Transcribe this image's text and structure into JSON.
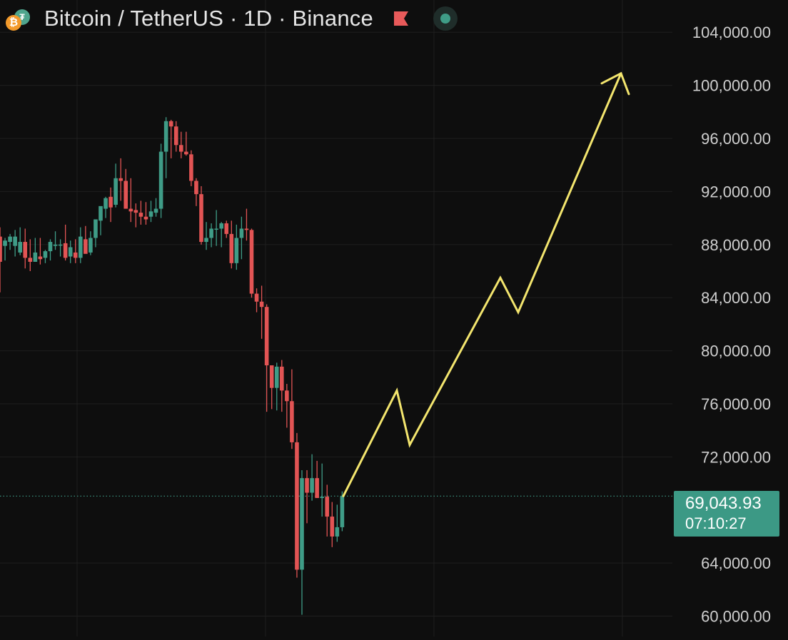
{
  "header": {
    "title": "Bitcoin / TetherUS · 1D · Binance",
    "btc_glyph": "₿",
    "tether_glyph": "₮",
    "accent_colors": {
      "up": "#3f9c87",
      "down": "#e25454",
      "projection": "#f3e56e",
      "flag": "#e85a5a"
    }
  },
  "price_label": {
    "price": "69,043.93",
    "countdown": "07:10:27"
  },
  "chart_data": {
    "type": "candlestick",
    "title": "Bitcoin / TetherUS · 1D · Binance",
    "ylim": [
      58900,
      106000
    ],
    "y_ticks": [
      {
        "value": 104000,
        "label": "104,000.00"
      },
      {
        "value": 100000,
        "label": "100,000.00"
      },
      {
        "value": 96000,
        "label": "96,000.00"
      },
      {
        "value": 92000,
        "label": "92,000.00"
      },
      {
        "value": 88000,
        "label": "88,000.00"
      },
      {
        "value": 84000,
        "label": "84,000.00"
      },
      {
        "value": 80000,
        "label": "80,000.00"
      },
      {
        "value": 76000,
        "label": "76,000.00"
      },
      {
        "value": 72000,
        "label": "72,000.00"
      },
      {
        "value": 64000,
        "label": "64,000.00"
      },
      {
        "value": 60000,
        "label": "60,000.00"
      }
    ],
    "grid": true,
    "current_price": 69043.93,
    "candles": [
      [
        0,
        88600,
        89300,
        84400,
        86700
      ],
      [
        1,
        87900,
        88500,
        86800,
        88300
      ],
      [
        2,
        88200,
        88800,
        87600,
        88600
      ],
      [
        3,
        87900,
        89100,
        87100,
        88600
      ],
      [
        4,
        87400,
        89300,
        87200,
        88200
      ],
      [
        5,
        88200,
        89200,
        86200,
        87000
      ],
      [
        6,
        87000,
        88400,
        86000,
        86700
      ],
      [
        7,
        86700,
        88500,
        86700,
        87400
      ],
      [
        8,
        87100,
        88500,
        86500,
        86900
      ],
      [
        9,
        87000,
        87600,
        86600,
        87500
      ],
      [
        10,
        87500,
        88400,
        86800,
        88200
      ],
      [
        11,
        87900,
        89000,
        87600,
        88000
      ],
      [
        12,
        88000,
        88400,
        87100,
        88000
      ],
      [
        13,
        88100,
        89500,
        86800,
        87000
      ],
      [
        14,
        87100,
        88300,
        86600,
        87800
      ],
      [
        15,
        87400,
        88400,
        86600,
        87000
      ],
      [
        16,
        87000,
        89300,
        86600,
        88600
      ],
      [
        17,
        88400,
        89400,
        87600,
        87300
      ],
      [
        18,
        87400,
        89000,
        87200,
        88500
      ],
      [
        19,
        88500,
        89800,
        87800,
        89900
      ],
      [
        20,
        89800,
        90700,
        88700,
        90900
      ],
      [
        21,
        90700,
        91600,
        90000,
        91500
      ],
      [
        22,
        91600,
        92300,
        89700,
        90800
      ],
      [
        23,
        91000,
        94100,
        90800,
        93000
      ],
      [
        24,
        93000,
        94500,
        91300,
        92800
      ],
      [
        25,
        92800,
        93700,
        90700,
        90700
      ],
      [
        26,
        90700,
        93000,
        89700,
        90500
      ],
      [
        27,
        90600,
        91100,
        89300,
        90400
      ],
      [
        28,
        90400,
        91300,
        89500,
        90100
      ],
      [
        29,
        90100,
        91200,
        89500,
        89900
      ],
      [
        30,
        90100,
        91300,
        89700,
        90500
      ],
      [
        31,
        90400,
        91500,
        90100,
        90700
      ],
      [
        32,
        90700,
        95600,
        90000,
        95000
      ],
      [
        33,
        95000,
        97600,
        93000,
        97300
      ],
      [
        34,
        97300,
        97400,
        94500,
        96900
      ],
      [
        35,
        96900,
        97300,
        95000,
        95500
      ],
      [
        36,
        95500,
        96500,
        94500,
        95000
      ],
      [
        37,
        95000,
        96500,
        94700,
        94800
      ],
      [
        38,
        94800,
        95100,
        92400,
        92800
      ],
      [
        39,
        92800,
        93000,
        90900,
        91800
      ],
      [
        40,
        91800,
        92400,
        88000,
        88200
      ],
      [
        41,
        88200,
        89700,
        87600,
        88500
      ],
      [
        42,
        88500,
        89600,
        87800,
        89200
      ],
      [
        43,
        89200,
        90600,
        87900,
        89200
      ],
      [
        44,
        89200,
        89700,
        87800,
        89600
      ],
      [
        45,
        89600,
        89800,
        88500,
        88800
      ],
      [
        46,
        88800,
        89800,
        86200,
        86600
      ],
      [
        47,
        86600,
        89500,
        86100,
        88500
      ],
      [
        48,
        88500,
        90100,
        86900,
        89200
      ],
      [
        49,
        89200,
        90700,
        88300,
        89100
      ],
      [
        50,
        89100,
        89200,
        84000,
        84300
      ],
      [
        51,
        84300,
        84700,
        82900,
        83700
      ],
      [
        52,
        83700,
        84900,
        80900,
        83300
      ],
      [
        53,
        83300,
        83500,
        75400,
        78900
      ],
      [
        54,
        78900,
        78700,
        75600,
        77200
      ],
      [
        55,
        77200,
        79100,
        75500,
        78800
      ],
      [
        56,
        78800,
        79300,
        75400,
        77000
      ],
      [
        57,
        77000,
        77500,
        74200,
        76200
      ],
      [
        58,
        76200,
        78600,
        72600,
        73100
      ],
      [
        59,
        73100,
        73800,
        62900,
        63500
      ],
      [
        60,
        63500,
        71000,
        60100,
        70400
      ],
      [
        61,
        70400,
        71000,
        67000,
        69300
      ],
      [
        62,
        69300,
        72200,
        68700,
        70400
      ],
      [
        63,
        70400,
        71700,
        69100,
        68900
      ],
      [
        64,
        68900,
        71500,
        67500,
        69000
      ],
      [
        65,
        69000,
        69900,
        66000,
        67500
      ],
      [
        66,
        67500,
        68600,
        65200,
        66000
      ],
      [
        67,
        66000,
        68400,
        65600,
        66700
      ],
      [
        68,
        66700,
        69400,
        66400,
        69044
      ]
    ],
    "projection_line": [
      [
        69044,
        "start"
      ],
      [
        77000,
        "peak"
      ],
      [
        72900,
        "pullback"
      ],
      [
        85500,
        "peak"
      ],
      [
        82900,
        "pullback"
      ],
      [
        100900,
        "target"
      ]
    ]
  }
}
